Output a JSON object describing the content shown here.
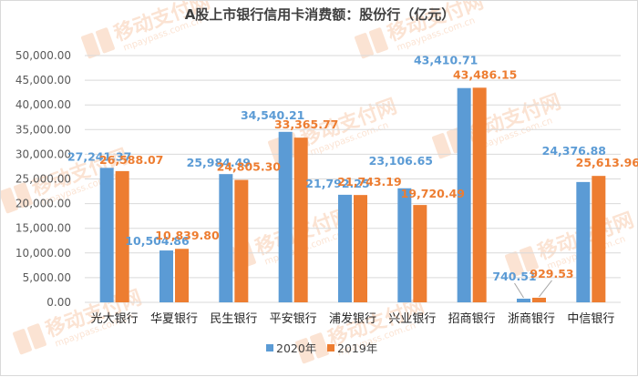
{
  "colors": {
    "series_2020": "#5b9bd5",
    "series_2019": "#ed7d31",
    "watermark": "#f4b183"
  },
  "watermark": {
    "text": "移动支付网",
    "url": "mpaypass.com.cn",
    "icon": "mp-logo"
  },
  "chart_data": {
    "type": "bar",
    "title": "A股上市银行信用卡消费额：股份行（亿元）",
    "xlabel": "",
    "ylabel": "",
    "categories": [
      "光大银行",
      "华夏银行",
      "民生银行",
      "平安银行",
      "浦发银行",
      "兴业银行",
      "招商银行",
      "浙商银行",
      "中信银行"
    ],
    "series": [
      {
        "name": "2020年",
        "values": [
          27241.37,
          10504.86,
          25984.49,
          34540.21,
          21792.25,
          23106.65,
          43410.71,
          740.51,
          24376.88
        ],
        "labels": [
          "27,241.37",
          "10,504.86",
          "25,984.49",
          "34,540.21",
          "21,792.25",
          "23,106.65",
          "43,410.71",
          "740.51",
          "24,376.88"
        ]
      },
      {
        "name": "2019年",
        "values": [
          26588.07,
          10839.8,
          24805.3,
          33365.77,
          21743.19,
          19720.49,
          43486.15,
          929.53,
          25613.96
        ],
        "labels": [
          "26,588.07",
          "10,839.80",
          "24,805.30",
          "33,365.77",
          "21,743.19",
          "19,720.49",
          "43,486.15",
          "929.53",
          "25,613.96"
        ]
      }
    ],
    "ylim": [
      0,
      50000
    ],
    "yticks": [
      "0.00",
      "5,000.00",
      "10,000.00",
      "15,000.00",
      "20,000.00",
      "25,000.00",
      "30,000.00",
      "35,000.00",
      "40,000.00",
      "45,000.00",
      "50,000.00"
    ],
    "grid": true,
    "legend_position": "bottom"
  }
}
